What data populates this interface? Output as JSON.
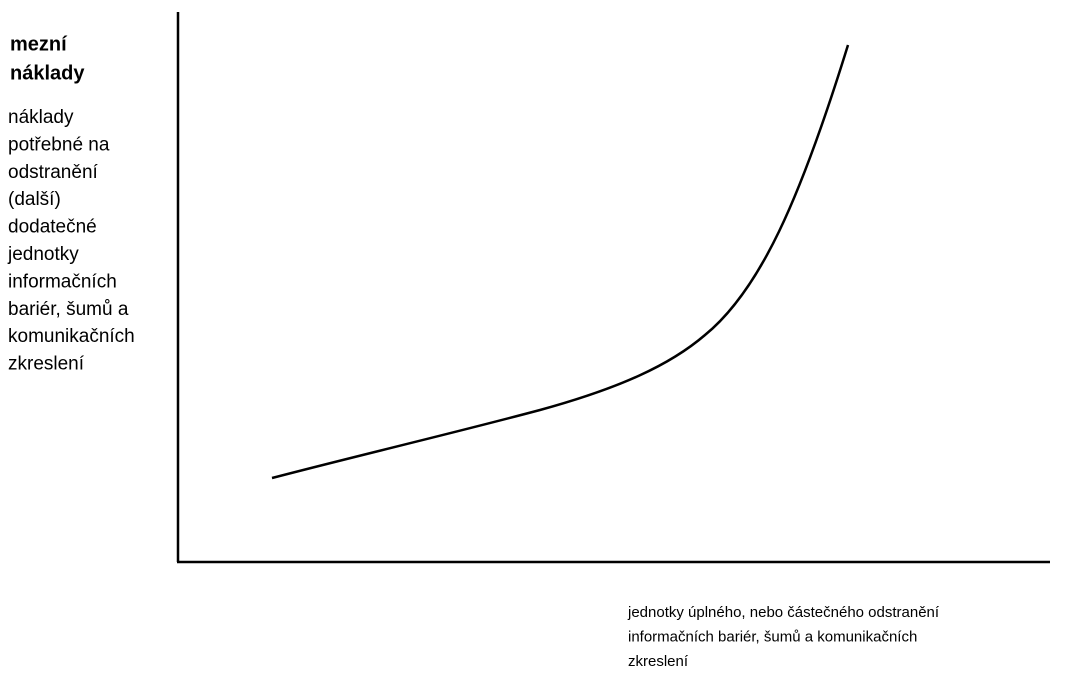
{
  "y_axis": {
    "title_lines": [
      "mezní",
      "náklady"
    ],
    "description_lines": [
      "náklady",
      "potřebné na",
      "odstranění",
      "(další)",
      "dodatečné",
      "jednotky",
      "informačních",
      "bariér, šumů a",
      "komunikačních",
      "zkreslení"
    ]
  },
  "x_axis": {
    "description_lines": [
      "jednotky úplného, nebo částečného odstranění",
      "informačních bariér, šumů a komunikačních",
      "zkreslení"
    ]
  }
}
